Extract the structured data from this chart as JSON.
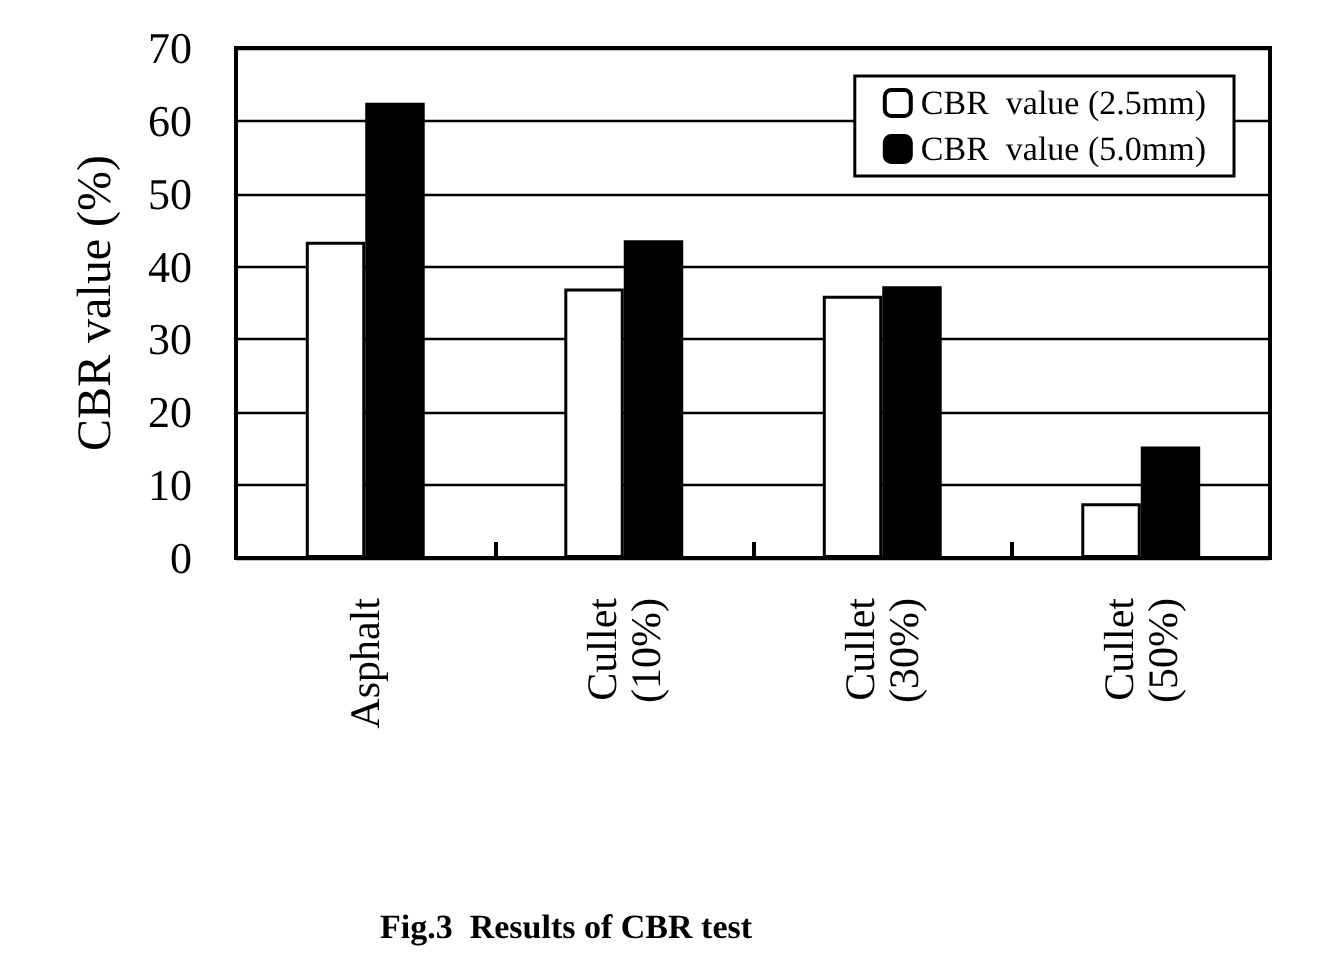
{
  "chart_data": {
    "type": "bar",
    "title": "Fig.3  Results of CBR test",
    "ylabel": "CBR value (%)",
    "categories": [
      "Asphalt",
      "Cullet\n(10%)",
      "Cullet\n(30%)",
      "Cullet\n(50%)"
    ],
    "series": [
      {
        "name": "CBR  value (2.5mm)",
        "color": "#ffffff",
        "values": [
          43.4,
          37,
          36,
          7.5
        ]
      },
      {
        "name": "CBR  value (5.0mm)",
        "color": "#000000",
        "values": [
          62.5,
          43.6,
          37.3,
          15.3
        ]
      }
    ],
    "ylim": [
      0,
      70
    ],
    "yticks": [
      0,
      10,
      20,
      30,
      40,
      50,
      60,
      70
    ],
    "grid": "y",
    "legend": "top right"
  }
}
